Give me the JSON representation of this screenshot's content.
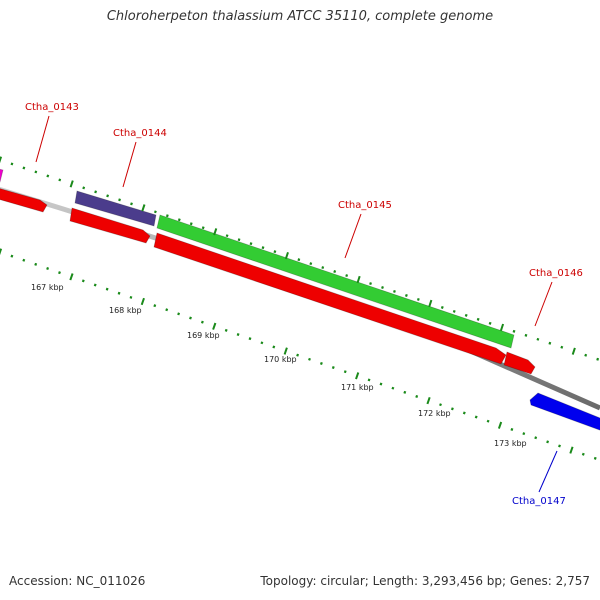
{
  "title": "Chloroherpeton thalassium ATCC 35110, complete genome",
  "accession": "Accession: NC_011026",
  "summary": "Topology: circular; Length: 3,293,456 bp; Genes: 2,757",
  "genes": [
    {
      "label": "Ctha_0143",
      "label_color": "#cc0000"
    },
    {
      "label": "Ctha_0144",
      "label_color": "#cc0000"
    },
    {
      "label": "Ctha_0145",
      "label_color": "#cc0000"
    },
    {
      "label": "Ctha_0146",
      "label_color": "#cc0000"
    },
    {
      "label": "Ctha_0147",
      "label_color": "#0000cc"
    }
  ],
  "scale_labels": [
    "167 kbp",
    "168 kbp",
    "169 kbp",
    "170 kbp",
    "171 kbp",
    "172 kbp",
    "173 kbp"
  ],
  "colors": {
    "red_feature": "#ee0000",
    "purple_feature": "#4b3c8c",
    "green_feature": "#33cc33",
    "blue_feature": "#0000ee",
    "magenta_feature": "#ee00cc",
    "backbone": "#8a8a8a",
    "ticks": "#1a8a1a"
  }
}
